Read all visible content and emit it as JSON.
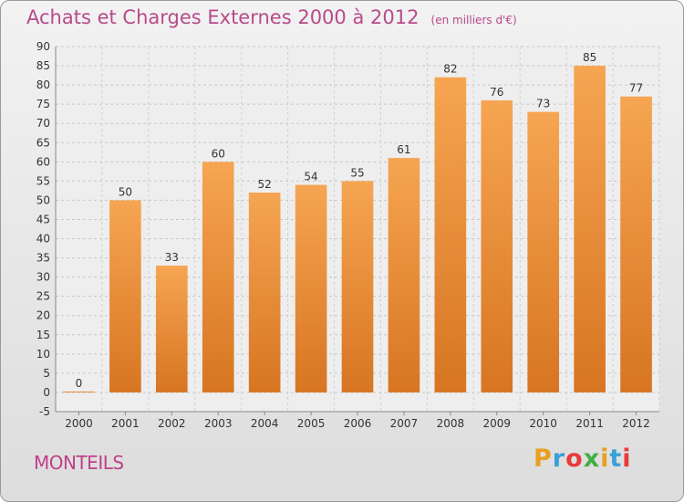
{
  "title": "Achats et Charges Externes 2000 à 2012",
  "subtitle": "(en milliers d'€)",
  "commune": "MONTEILS",
  "logo": {
    "text": "Proxiti",
    "colors": [
      "#e8a020",
      "#3aa0d8",
      "#e83a3a",
      "#40b040",
      "#e8a020",
      "#3aa0d8",
      "#e83a3a"
    ]
  },
  "colors": {
    "bar_top": "#f6a552",
    "bar_bottom": "#d77522",
    "title": "#b84a8a"
  },
  "chart_data": {
    "type": "bar",
    "title": "Achats et Charges Externes 2000 à 2012",
    "subtitle": "(en milliers d'€)",
    "categories": [
      "2000",
      "2001",
      "2002",
      "2003",
      "2004",
      "2005",
      "2006",
      "2007",
      "2008",
      "2009",
      "2010",
      "2011",
      "2012"
    ],
    "values": [
      0,
      50,
      33,
      60,
      52,
      54,
      55,
      61,
      82,
      76,
      73,
      85,
      77
    ],
    "ylim": [
      -5,
      90
    ],
    "yticks": [
      -5,
      0,
      5,
      10,
      15,
      20,
      25,
      30,
      35,
      40,
      45,
      50,
      55,
      60,
      65,
      70,
      75,
      80,
      85,
      90
    ],
    "grid": true
  }
}
